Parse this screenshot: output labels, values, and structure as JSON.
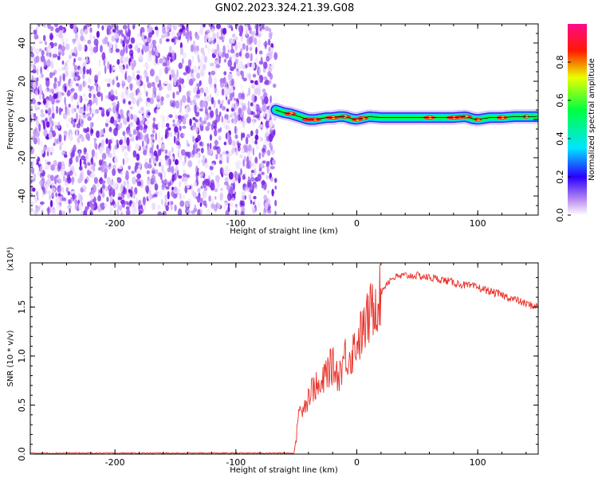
{
  "page_title": "GN02.2023.324.21.39.G08",
  "chart_data": [
    {
      "type": "heatmap",
      "xlabel": "Height of straight line (km)",
      "ylabel": "Frequency (Hz)",
      "xlim": [
        -270,
        150
      ],
      "ylim": [
        -50,
        50
      ],
      "x_ticks": [
        -200,
        -100,
        0,
        100
      ],
      "x_tick_labels": [
        "-200",
        "-100",
        "0",
        "100"
      ],
      "y_ticks": [
        -40,
        -20,
        0,
        20,
        40
      ],
      "y_tick_labels": [
        "-40",
        "-20",
        "0",
        "20",
        "40"
      ],
      "noise_region_x": [
        -270,
        -67
      ],
      "signal_trace": {
        "x": [
          -67,
          -60,
          -55,
          -50,
          -45,
          -40,
          -35,
          -30,
          -25,
          -20,
          -15,
          -10,
          -5,
          0,
          10,
          20,
          40,
          60,
          80,
          90,
          95,
          100,
          110,
          120,
          130,
          140,
          150
        ],
        "y": [
          5,
          3.5,
          3,
          2,
          1,
          0,
          0,
          0.5,
          1,
          1,
          1.5,
          1.5,
          0.5,
          0,
          1.5,
          1,
          1,
          1,
          1,
          1.5,
          0.5,
          0,
          1,
          1,
          1.5,
          1.5,
          1.5
        ]
      },
      "colorbar": {
        "label": "Normalized spectral amplitude",
        "range": [
          0,
          1
        ],
        "ticks": [
          0.0,
          0.2,
          0.4,
          0.6,
          0.8
        ],
        "tick_labels": [
          "0.0",
          "0.2",
          "0.4",
          "0.6",
          "0.8"
        ],
        "colors": [
          "#ffffff",
          "#8a2be2",
          "#0000ff",
          "#00ffff",
          "#00ff00",
          "#ffff00",
          "#ff0000",
          "#ff0080"
        ]
      },
      "grid": false
    },
    {
      "type": "line",
      "xlabel": "Height of straight line (km)",
      "ylabel": "SNR (10 * v/v)",
      "y_multiplier": "(x10⁴)",
      "xlim": [
        -270,
        150
      ],
      "ylim": [
        0,
        1.95
      ],
      "x_ticks": [
        -200,
        -100,
        0,
        100
      ],
      "x_tick_labels": [
        "-200",
        "-100",
        "0",
        "100"
      ],
      "y_ticks": [
        0.0,
        0.5,
        1.0,
        1.5
      ],
      "y_tick_labels": [
        "0.0",
        "0.5",
        "1.0",
        "1.5"
      ],
      "series": [
        {
          "color": "#e8312a",
          "x": [
            -270,
            -200,
            -100,
            -52,
            -50,
            -48,
            -46,
            -44,
            -42,
            -40,
            -35,
            -30,
            -25,
            -20,
            -15,
            -10,
            -5,
            0,
            5,
            10,
            15,
            20,
            25,
            30,
            40,
            50,
            60,
            70,
            80,
            90,
            100,
            110,
            120,
            130,
            140,
            150
          ],
          "y": [
            0.01,
            0.01,
            0.01,
            0.01,
            0.15,
            0.5,
            0.4,
            0.55,
            0.5,
            0.6,
            0.7,
            0.65,
            0.85,
            0.9,
            0.8,
            1.0,
            1.0,
            1.15,
            1.25,
            1.4,
            1.55,
            1.65,
            1.75,
            1.8,
            1.82,
            1.82,
            1.8,
            1.78,
            1.75,
            1.72,
            1.7,
            1.66,
            1.62,
            1.58,
            1.53,
            1.5
          ]
        }
      ],
      "grid": false
    }
  ]
}
